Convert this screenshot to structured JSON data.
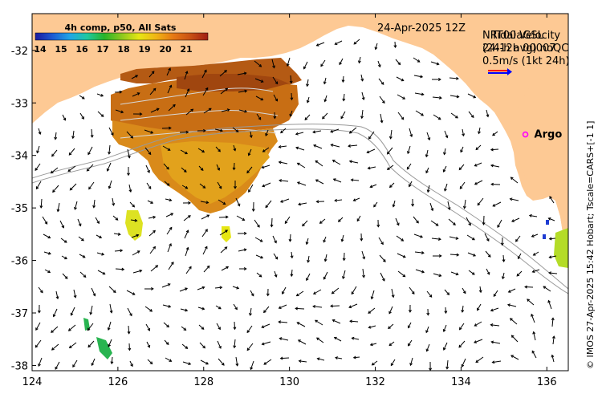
{
  "map": {
    "date_label": "24-Apr-2025 12Z",
    "credit": "© IMOS 27-Apr-2025 15:42 Hobart; Tscale=CARS+[-1 1]",
    "lon_range": [
      124,
      136.5
    ],
    "lat_range": [
      -38.1,
      -31.3
    ]
  },
  "colorbar": {
    "title": "4h comp, p50, All Sats",
    "ticks": [
      "14",
      "15",
      "16",
      "17",
      "18",
      "19",
      "20",
      "21"
    ],
    "colors": [
      "#1a1aa0",
      "#1e5ad2",
      "#1fa5e6",
      "#1ec8a0",
      "#28b428",
      "#8cc81e",
      "#e6e614",
      "#f0b414",
      "#e67814",
      "#c85014",
      "#a01e14"
    ]
  },
  "legend": {
    "overlap_line_1": "NRT00aGSL",
    "overlap_line_2": "24-12h 00007",
    "velocity_line_1": "Tidal Velocity",
    "velocity_line_2": "(24-h avg) noQC",
    "scale_text": "0.5m/s (1kt 24h)"
  },
  "argo": {
    "label": "Argo",
    "lon": 135.5,
    "lat": -33.6
  },
  "axes": {
    "x_ticks": [
      "124",
      "126",
      "128",
      "130",
      "132",
      "134",
      "136"
    ],
    "y_ticks": [
      "-32",
      "-33",
      "-34",
      "-35",
      "-36",
      "-37",
      "-38"
    ]
  },
  "colors": {
    "land": "#fdc994",
    "ocean": "#ffffff",
    "arrow": "#000000",
    "isobath": "#999999",
    "argo": "#ff00ff"
  }
}
